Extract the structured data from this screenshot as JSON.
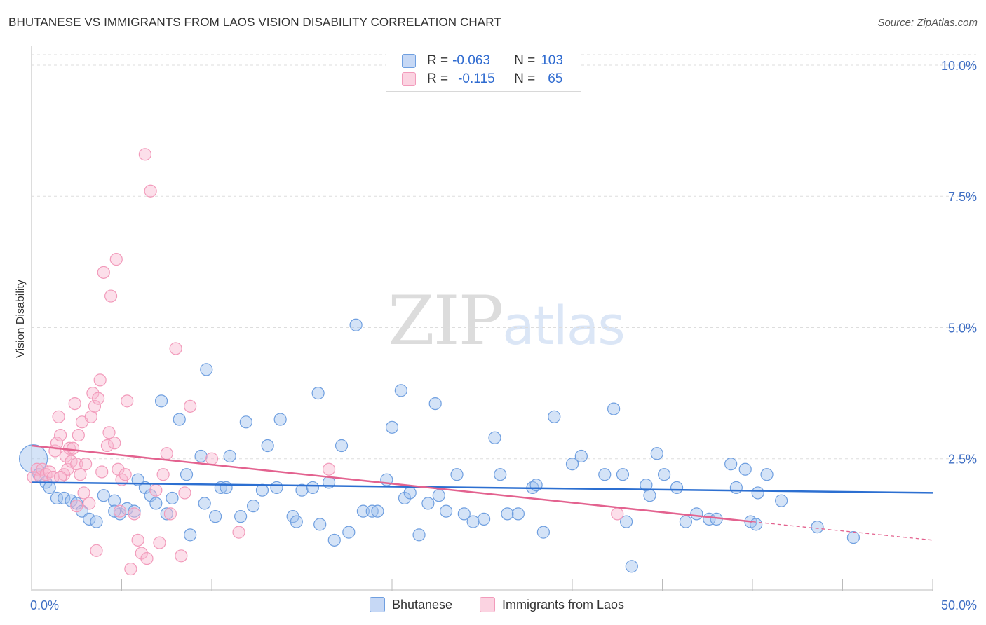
{
  "title": "BHUTANESE VS IMMIGRANTS FROM LAOS VISION DISABILITY CORRELATION CHART",
  "source": "Source: ZipAtlas.com",
  "watermark": {
    "part1": "ZIP",
    "part2": "atlas"
  },
  "legend": {
    "rows": [
      {
        "r_label": "R =",
        "r_value": "-0.063",
        "n_label": "N =",
        "n_value": "103",
        "color": "#a9c4ef",
        "border": "#5b8fd8"
      },
      {
        "r_label": "R =",
        "r_value": "-0.115",
        "n_label": "N =",
        "n_value": "65",
        "color": "#f7bcd0",
        "border": "#e27ea3"
      }
    ]
  },
  "bottom_legend": [
    {
      "label": "Bhutanese",
      "color": "#a9c4ef",
      "border": "#5b8fd8"
    },
    {
      "label": "Immigrants from Laos",
      "color": "#f7bcd0",
      "border": "#e27ea3"
    }
  ],
  "chart_data": {
    "type": "scatter",
    "title": "BHUTANESE VS IMMIGRANTS FROM LAOS VISION DISABILITY CORRELATION CHART",
    "xlabel": "",
    "ylabel": "Vision Disability",
    "xlim": [
      0,
      50
    ],
    "ylim": [
      0,
      10.2
    ],
    "x_tick_labels": [
      "0.0%",
      "50.0%"
    ],
    "y_ticks": [
      2.5,
      5.0,
      7.5,
      10.0
    ],
    "y_tick_labels": [
      "2.5%",
      "5.0%",
      "7.5%",
      "10.0%"
    ],
    "grid": "horizontal dashed",
    "legend_position": "top-center",
    "series": [
      {
        "name": "Bhutanese",
        "color": "#6f9fe0",
        "line_color": "#2c6fd1",
        "trend": {
          "x": [
            0,
            50
          ],
          "y": [
            2.05,
            1.85
          ]
        },
        "points": [
          [
            0.1,
            2.5
          ],
          [
            0.4,
            2.2
          ],
          [
            0.8,
            2.05
          ],
          [
            1.0,
            1.95
          ],
          [
            1.4,
            1.75
          ],
          [
            1.8,
            1.75
          ],
          [
            2.2,
            1.7
          ],
          [
            2.5,
            1.65
          ],
          [
            2.8,
            1.5
          ],
          [
            3.2,
            1.35
          ],
          [
            3.6,
            1.3
          ],
          [
            4.0,
            1.8
          ],
          [
            4.6,
            1.7
          ],
          [
            4.9,
            1.45
          ],
          [
            5.3,
            1.55
          ],
          [
            5.7,
            1.5
          ],
          [
            5.9,
            2.1
          ],
          [
            6.3,
            1.95
          ],
          [
            6.6,
            1.8
          ],
          [
            6.9,
            1.65
          ],
          [
            7.2,
            3.6
          ],
          [
            7.5,
            1.45
          ],
          [
            7.8,
            1.75
          ],
          [
            8.2,
            3.25
          ],
          [
            8.6,
            2.2
          ],
          [
            8.8,
            1.05
          ],
          [
            9.4,
            2.55
          ],
          [
            9.6,
            1.65
          ],
          [
            9.7,
            4.2
          ],
          [
            10.2,
            1.4
          ],
          [
            10.5,
            1.95
          ],
          [
            10.8,
            1.95
          ],
          [
            11.0,
            2.55
          ],
          [
            11.6,
            1.4
          ],
          [
            11.9,
            3.2
          ],
          [
            12.3,
            1.6
          ],
          [
            12.8,
            1.9
          ],
          [
            13.1,
            2.75
          ],
          [
            13.6,
            1.95
          ],
          [
            13.8,
            3.25
          ],
          [
            14.5,
            1.4
          ],
          [
            14.7,
            1.3
          ],
          [
            15.0,
            1.9
          ],
          [
            15.6,
            1.95
          ],
          [
            15.9,
            3.75
          ],
          [
            16.0,
            1.25
          ],
          [
            16.5,
            2.05
          ],
          [
            16.8,
            0.95
          ],
          [
            17.2,
            2.75
          ],
          [
            17.6,
            1.1
          ],
          [
            18.0,
            5.05
          ],
          [
            18.4,
            1.5
          ],
          [
            18.9,
            1.5
          ],
          [
            19.2,
            1.5
          ],
          [
            19.7,
            2.1
          ],
          [
            20.0,
            3.1
          ],
          [
            20.5,
            3.8
          ],
          [
            20.7,
            1.75
          ],
          [
            21.0,
            1.85
          ],
          [
            21.5,
            1.05
          ],
          [
            22.0,
            1.65
          ],
          [
            22.4,
            3.55
          ],
          [
            22.6,
            1.8
          ],
          [
            23.0,
            1.5
          ],
          [
            23.6,
            2.2
          ],
          [
            24.0,
            1.45
          ],
          [
            24.5,
            1.3
          ],
          [
            25.1,
            1.35
          ],
          [
            25.7,
            2.9
          ],
          [
            26.0,
            2.2
          ],
          [
            26.4,
            1.45
          ],
          [
            27.0,
            1.45
          ],
          [
            27.8,
            1.95
          ],
          [
            28.0,
            2.0
          ],
          [
            28.4,
            1.1
          ],
          [
            29.0,
            3.3
          ],
          [
            30.0,
            2.4
          ],
          [
            30.5,
            2.55
          ],
          [
            31.8,
            2.2
          ],
          [
            32.3,
            3.45
          ],
          [
            32.8,
            2.2
          ],
          [
            33.0,
            1.3
          ],
          [
            33.3,
            0.45
          ],
          [
            34.1,
            2.0
          ],
          [
            34.3,
            1.8
          ],
          [
            34.7,
            2.6
          ],
          [
            35.1,
            2.2
          ],
          [
            35.8,
            1.95
          ],
          [
            36.3,
            1.3
          ],
          [
            36.9,
            1.45
          ],
          [
            37.6,
            1.35
          ],
          [
            38.0,
            1.35
          ],
          [
            38.8,
            2.4
          ],
          [
            39.1,
            1.95
          ],
          [
            39.6,
            2.3
          ],
          [
            39.9,
            1.3
          ],
          [
            40.2,
            1.25
          ],
          [
            40.3,
            1.85
          ],
          [
            40.8,
            2.2
          ],
          [
            41.6,
            1.7
          ],
          [
            43.6,
            1.2
          ],
          [
            45.6,
            1.0
          ],
          [
            4.6,
            1.5
          ]
        ]
      },
      {
        "name": "Immigrants from Laos",
        "color": "#f29bbb",
        "line_color": "#e3628f",
        "trend": {
          "x": [
            0,
            40
          ],
          "y": [
            2.75,
            1.3
          ]
        },
        "trend_dashed": {
          "x": [
            40,
            50
          ],
          "y": [
            1.3,
            0.95
          ]
        },
        "points": [
          [
            0.1,
            2.15
          ],
          [
            0.3,
            2.3
          ],
          [
            0.5,
            2.15
          ],
          [
            0.6,
            2.3
          ],
          [
            0.8,
            2.2
          ],
          [
            1.0,
            2.25
          ],
          [
            1.2,
            2.15
          ],
          [
            1.3,
            2.65
          ],
          [
            1.4,
            2.8
          ],
          [
            1.5,
            3.3
          ],
          [
            1.6,
            2.95
          ],
          [
            1.8,
            2.2
          ],
          [
            1.9,
            2.55
          ],
          [
            2.0,
            2.3
          ],
          [
            2.1,
            2.7
          ],
          [
            2.2,
            2.45
          ],
          [
            2.3,
            2.7
          ],
          [
            2.4,
            3.55
          ],
          [
            2.5,
            2.4
          ],
          [
            2.6,
            2.95
          ],
          [
            2.7,
            2.2
          ],
          [
            2.8,
            3.2
          ],
          [
            2.9,
            1.85
          ],
          [
            3.0,
            2.4
          ],
          [
            3.2,
            1.65
          ],
          [
            3.3,
            3.3
          ],
          [
            3.4,
            3.75
          ],
          [
            3.5,
            3.5
          ],
          [
            3.6,
            0.75
          ],
          [
            3.7,
            3.65
          ],
          [
            3.8,
            4.0
          ],
          [
            3.9,
            2.25
          ],
          [
            4.0,
            6.05
          ],
          [
            4.2,
            2.75
          ],
          [
            4.3,
            3.0
          ],
          [
            4.4,
            5.6
          ],
          [
            4.6,
            2.8
          ],
          [
            4.7,
            6.3
          ],
          [
            4.8,
            2.3
          ],
          [
            4.9,
            1.5
          ],
          [
            5.0,
            2.1
          ],
          [
            5.2,
            2.2
          ],
          [
            5.3,
            3.6
          ],
          [
            5.5,
            0.4
          ],
          [
            5.7,
            1.45
          ],
          [
            5.9,
            0.95
          ],
          [
            6.1,
            0.7
          ],
          [
            6.3,
            8.3
          ],
          [
            6.4,
            0.6
          ],
          [
            6.6,
            7.6
          ],
          [
            6.9,
            1.9
          ],
          [
            7.1,
            0.9
          ],
          [
            7.3,
            2.2
          ],
          [
            7.5,
            2.6
          ],
          [
            7.7,
            1.45
          ],
          [
            8.0,
            4.6
          ],
          [
            8.3,
            0.65
          ],
          [
            8.5,
            1.85
          ],
          [
            8.8,
            3.5
          ],
          [
            10.0,
            2.5
          ],
          [
            11.5,
            1.1
          ],
          [
            16.5,
            2.3
          ],
          [
            32.5,
            1.45
          ],
          [
            2.5,
            1.6
          ],
          [
            1.6,
            2.15
          ]
        ]
      }
    ]
  }
}
